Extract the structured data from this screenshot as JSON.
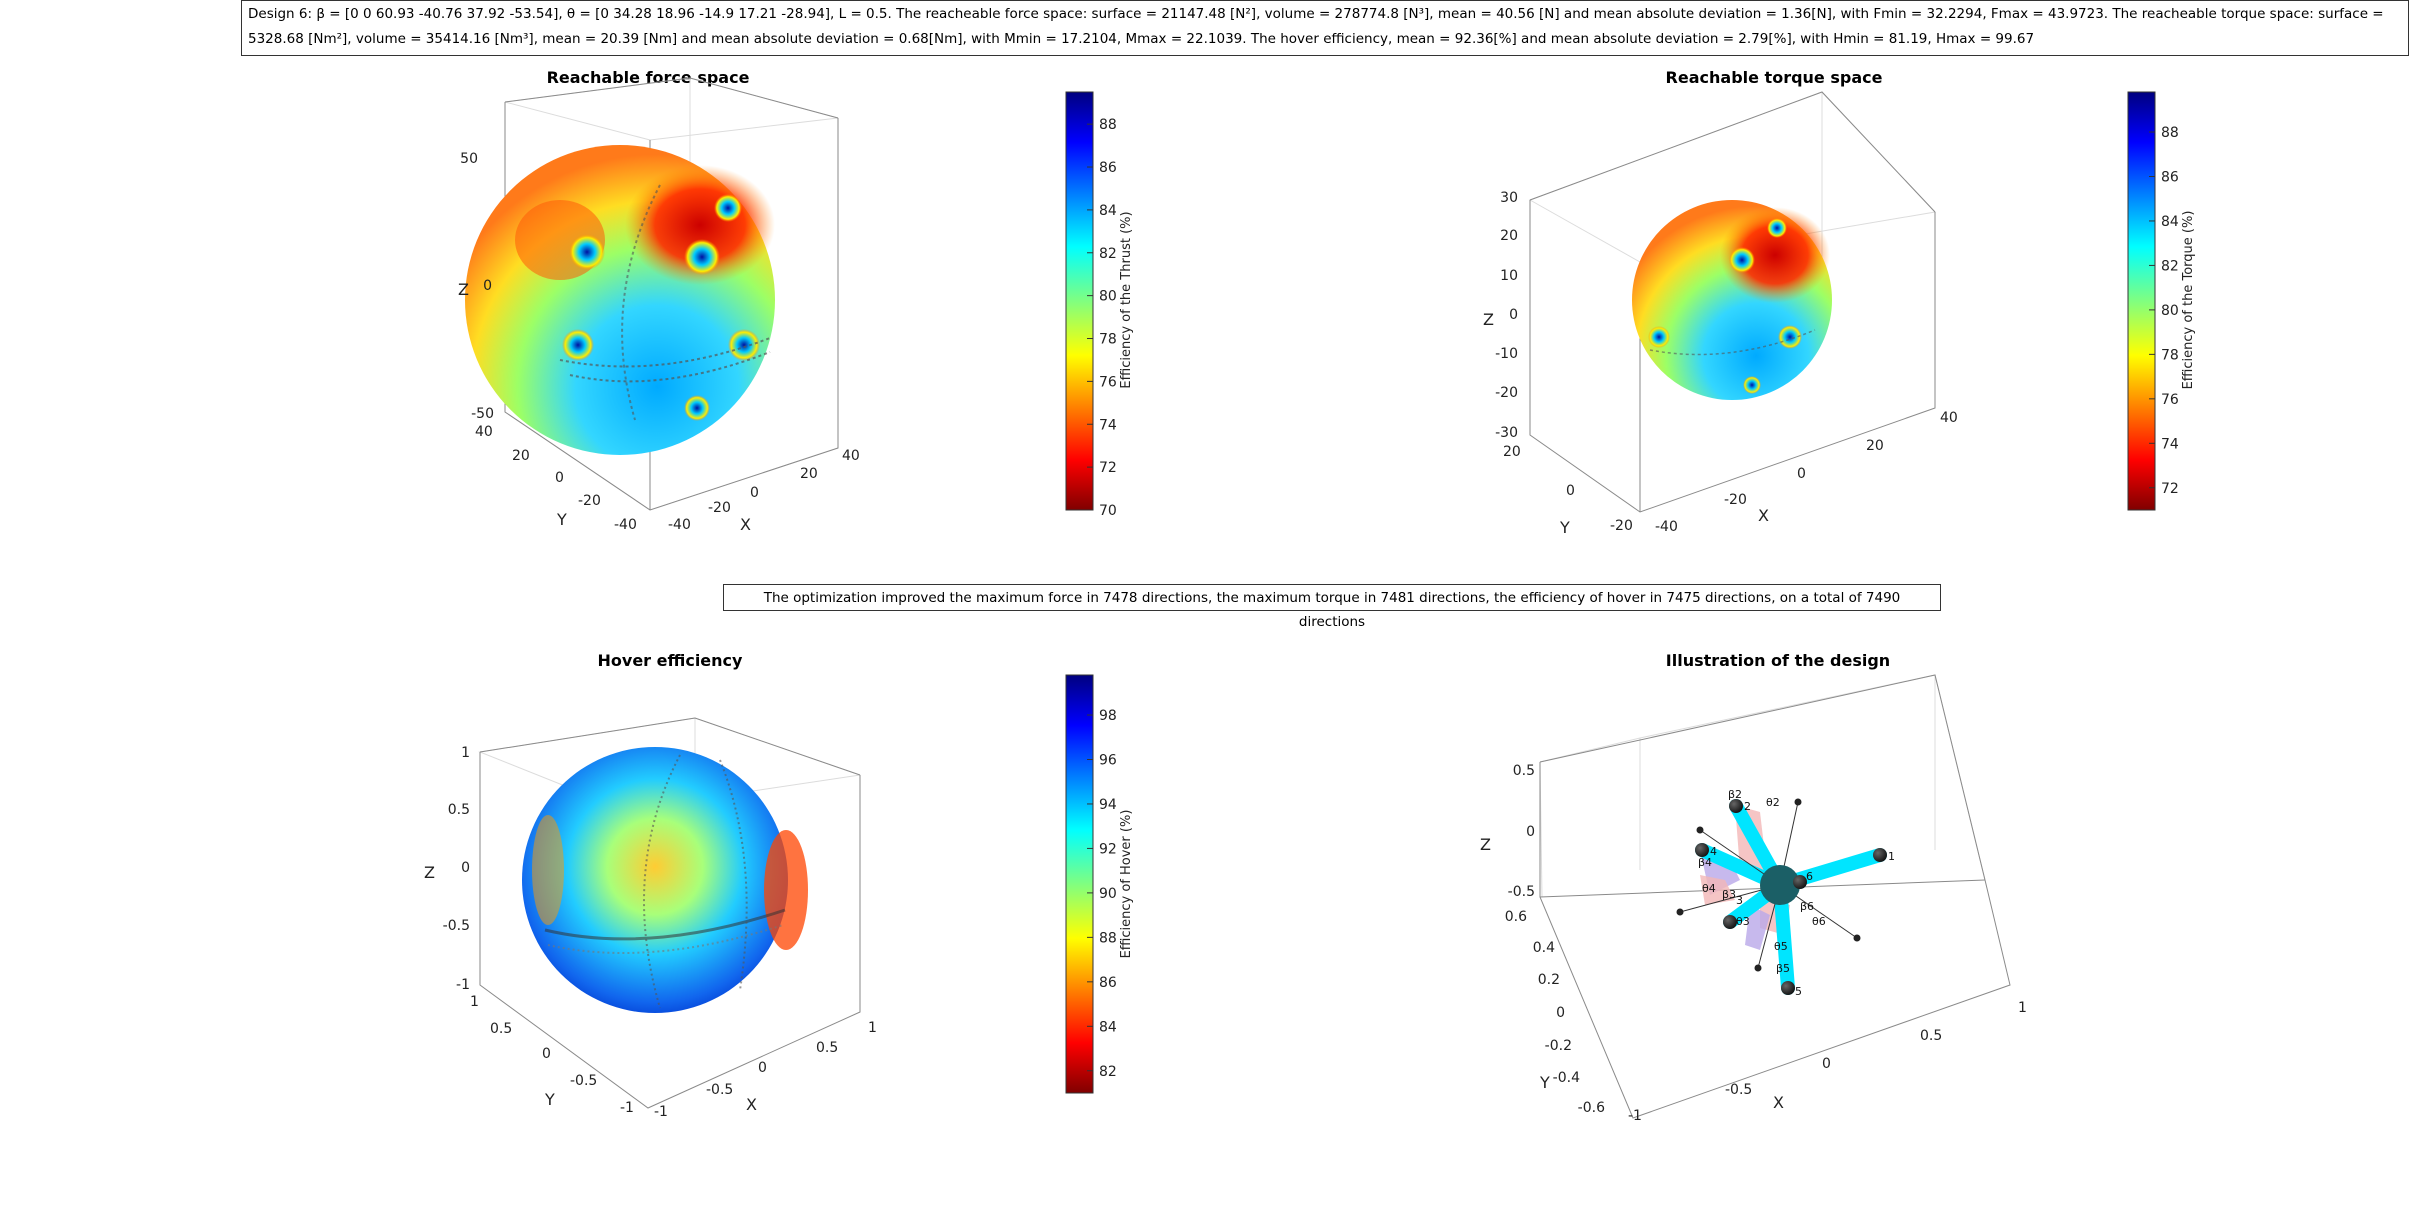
{
  "header": {
    "text": "Design 6: β = [0 0 60.93 -40.76 37.92 -53.54], θ = [0 34.28 18.96 -14.9 17.21 -28.94], L = 0.5. The reacheable force space: surface = 21147.48 [N²], volume = 278774.8 [N³], mean = 40.56 [N] and mean absolute deviation = 1.36[N], with Fmin = 32.2294, Fmax = 43.9723. The reacheable torque space: surface = 5328.68 [Nm²], volume = 35414.16 [Nm³], mean = 20.39 [Nm] and mean absolute deviation = 0.68[Nm], with Mmin = 17.2104, Mmax = 22.1039. The hover efficiency, mean = 92.36[%] and mean absolute deviation = 2.79[%], with Hmin = 81.19, Hmax = 99.67"
  },
  "optimization_text": "The optimization improved the maximum force in 7478 directions, the maximum torque in 7481 directions, the efficiency of hover in 7475 directions, on a total of 7490 directions",
  "colors": {
    "jet_low": "#800000",
    "jet_mid": "#80ff80",
    "jet_high": "#000080",
    "arm": "#00e5ff",
    "sector_pink": "#f2b6b6",
    "sector_violet": "#b9a7e8"
  },
  "chart_data": [
    {
      "type": "surface3d",
      "title": "Reachable force space",
      "xlabel": "X",
      "ylabel": "Y",
      "zlabel": "Z",
      "x_ticks": [
        "-40",
        "-20",
        "0",
        "20",
        "40"
      ],
      "y_ticks": [
        "-40",
        "-20",
        "0",
        "20",
        "40"
      ],
      "z_ticks": [
        "-50",
        "0",
        "50"
      ],
      "colorbar": {
        "label": "Efficiency of the Thrust (%)",
        "ticks": [
          "70",
          "72",
          "74",
          "76",
          "78",
          "80",
          "82",
          "84",
          "86",
          "88"
        ],
        "range": [
          70,
          89.5
        ]
      }
    },
    {
      "type": "surface3d",
      "title": "Reachable torque space",
      "xlabel": "X",
      "ylabel": "Y",
      "zlabel": "Z",
      "x_ticks": [
        "-40",
        "-20",
        "0",
        "20",
        "40"
      ],
      "y_ticks": [
        "-20",
        "0",
        "20"
      ],
      "z_ticks": [
        "-30",
        "-20",
        "-10",
        "0",
        "10",
        "20",
        "30"
      ],
      "colorbar": {
        "label": "Efficiency of the Torque (%)",
        "ticks": [
          "72",
          "74",
          "76",
          "78",
          "80",
          "82",
          "84",
          "86",
          "88"
        ],
        "range": [
          71,
          89.8
        ]
      }
    },
    {
      "type": "surface3d",
      "title": "Hover efficiency",
      "xlabel": "X",
      "ylabel": "Y",
      "zlabel": "Z",
      "x_ticks": [
        "-1",
        "-0.5",
        "0",
        "0.5",
        "1"
      ],
      "y_ticks": [
        "-1",
        "-0.5",
        "0",
        "0.5",
        "1"
      ],
      "z_ticks": [
        "-1",
        "-0.5",
        "0",
        "0.5",
        "1"
      ],
      "colorbar": {
        "label": "Efficiency of Hover (%)",
        "ticks": [
          "82",
          "84",
          "86",
          "88",
          "90",
          "92",
          "94",
          "96",
          "98"
        ],
        "range": [
          81,
          99.8
        ]
      }
    },
    {
      "type": "design3d",
      "title": "Illustration of the design",
      "xlabel": "X",
      "ylabel": "Y",
      "zlabel": "Z",
      "x_ticks": [
        "-1",
        "-0.5",
        "0",
        "0.5",
        "1"
      ],
      "y_ticks": [
        "-0.6",
        "-0.4",
        "-0.2",
        "0",
        "0.2",
        "0.4",
        "0.6"
      ],
      "z_ticks": [
        "-0.5",
        "0",
        "0.5"
      ],
      "rotor_labels": [
        "1",
        "2",
        "3",
        "4",
        "5",
        "6"
      ],
      "angle_labels": [
        "β2",
        "θ2",
        "β3",
        "θ3",
        "β4",
        "θ4",
        "β5",
        "θ5",
        "β6",
        "θ6"
      ]
    }
  ]
}
